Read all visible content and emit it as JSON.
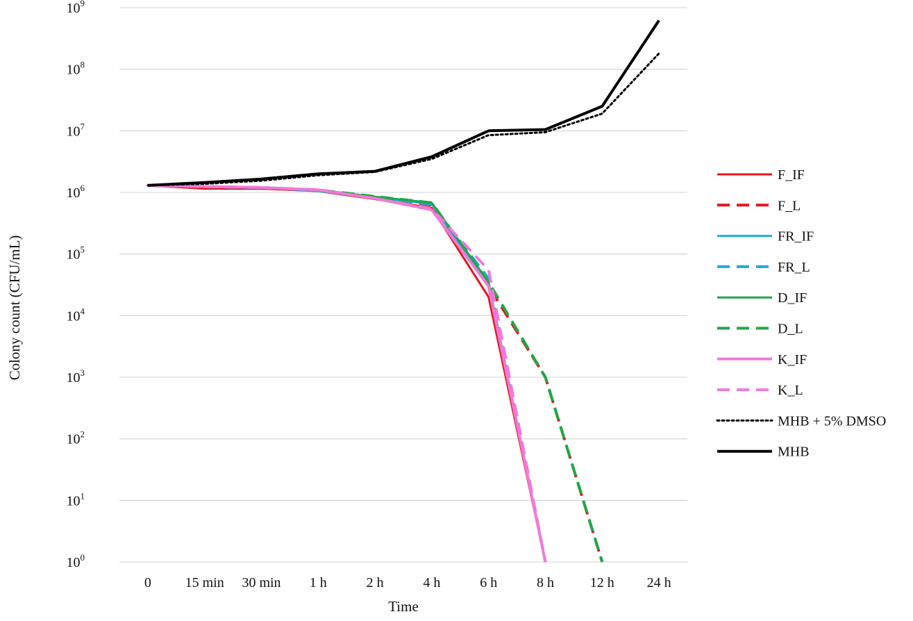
{
  "chart_data": {
    "type": "line",
    "title": "",
    "xlabel": "Time",
    "ylabel": "Colony count (CFU/mL)",
    "yscale": "log",
    "ylim": [
      1,
      1000000000
    ],
    "grid": true,
    "legend_position": "right",
    "categories": [
      "0",
      "15 min",
      "30 min",
      "1 h",
      "2 h",
      "4 h",
      "6 h",
      "8 h",
      "12 h",
      "24 h"
    ],
    "yticks": [
      {
        "base": "10",
        "exp": "0"
      },
      {
        "base": "10",
        "exp": "1"
      },
      {
        "base": "10",
        "exp": "2"
      },
      {
        "base": "10",
        "exp": "3"
      },
      {
        "base": "10",
        "exp": "4"
      },
      {
        "base": "10",
        "exp": "5"
      },
      {
        "base": "10",
        "exp": "6"
      },
      {
        "base": "10",
        "exp": "7"
      },
      {
        "base": "10",
        "exp": "8"
      },
      {
        "base": "10",
        "exp": "9"
      }
    ],
    "series": [
      {
        "name": "F_IF",
        "color": "#e8141c",
        "dash": "solid",
        "width": 3,
        "values": [
          1300000,
          1150000,
          1150000,
          1050000,
          780000,
          560000,
          20000,
          1,
          null,
          null
        ]
      },
      {
        "name": "F_L",
        "color": "#e8141c",
        "dash": "dashed",
        "width": 4,
        "values": [
          1300000,
          1200000,
          1200000,
          1080000,
          850000,
          620000,
          30000,
          1000,
          1,
          null
        ]
      },
      {
        "name": "FR_IF",
        "color": "#1aace0",
        "dash": "solid",
        "width": 3,
        "values": [
          1300000,
          1250000,
          1200000,
          1050000,
          820000,
          650000,
          30000,
          1,
          null,
          null
        ]
      },
      {
        "name": "FR_L",
        "color": "#1aace0",
        "dash": "dashed",
        "width": 4,
        "values": [
          1300000,
          1230000,
          1200000,
          1080000,
          840000,
          640000,
          40000,
          1,
          null,
          null
        ]
      },
      {
        "name": "D_IF",
        "color": "#1fa846",
        "dash": "solid",
        "width": 3,
        "values": [
          1300000,
          1250000,
          1200000,
          1100000,
          850000,
          680000,
          35000,
          1,
          null,
          null
        ]
      },
      {
        "name": "D_L",
        "color": "#1fa846",
        "dash": "dashed",
        "width": 4,
        "values": [
          1300000,
          1250000,
          1200000,
          1100000,
          860000,
          680000,
          35000,
          1000,
          1,
          null
        ]
      },
      {
        "name": "K_IF",
        "color": "#f07ad8",
        "dash": "solid",
        "width": 4,
        "values": [
          1300000,
          1250000,
          1200000,
          1100000,
          800000,
          520000,
          30000,
          1,
          null,
          null
        ]
      },
      {
        "name": "K_L",
        "color": "#f07ad8",
        "dash": "dashed",
        "width": 4,
        "values": [
          1300000,
          1250000,
          1200000,
          1100000,
          800000,
          540000,
          55000,
          1,
          null,
          null
        ]
      },
      {
        "name": "MHB + 5% DMSO",
        "color": "#000000",
        "dash": "dotted",
        "width": 3,
        "values": [
          1300000,
          1380000,
          1550000,
          1900000,
          2150000,
          3500000,
          8500000,
          9500000,
          19000000,
          180000000
        ]
      },
      {
        "name": "MHB",
        "color": "#000000",
        "dash": "solid",
        "width": 4,
        "values": [
          1300000,
          1450000,
          1650000,
          2000000,
          2200000,
          3800000,
          10000000,
          10500000,
          25000000,
          620000000
        ]
      }
    ]
  }
}
